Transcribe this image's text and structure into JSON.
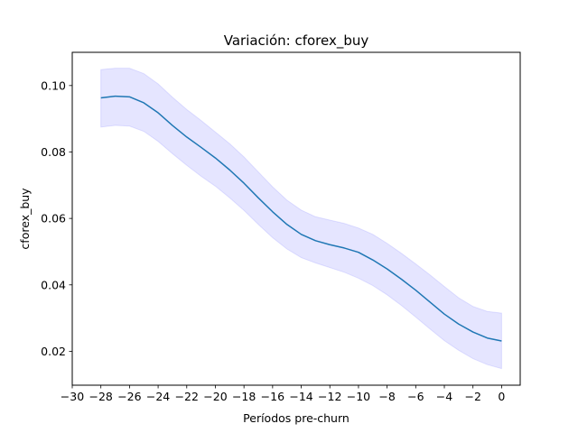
{
  "chart_data": {
    "type": "line",
    "title": "Variación: cforex_buy",
    "xlabel": "Períodos pre-churn",
    "ylabel": "cforex_buy",
    "xlim": [
      -30,
      1.3
    ],
    "ylim": [
      0.0098,
      0.11
    ],
    "x_ticks": [
      -30,
      -28,
      -26,
      -24,
      -22,
      -20,
      -18,
      -16,
      -14,
      -12,
      -10,
      -8,
      -6,
      -4,
      -2,
      0
    ],
    "x_tick_labels": [
      "−30",
      "−28",
      "−26",
      "−24",
      "−22",
      "−20",
      "−18",
      "−16",
      "−14",
      "−12",
      "−10",
      "−8",
      "−6",
      "−4",
      "−2",
      "0"
    ],
    "y_ticks": [
      0.02,
      0.04,
      0.06,
      0.08,
      0.1
    ],
    "y_tick_labels": [
      "0.02",
      "0.04",
      "0.06",
      "0.08",
      "0.10"
    ],
    "grid": false,
    "series": [
      {
        "color": "#1f77b4",
        "band_color": "#0000ff",
        "x": [
          -28,
          -27,
          -26,
          -25,
          -24,
          -23,
          -22,
          -21,
          -20,
          -19,
          -18,
          -17,
          -16,
          -15,
          -14,
          -13,
          -12,
          -11,
          -10,
          -9,
          -8,
          -7,
          -6,
          -5,
          -4,
          -3,
          -2,
          -1,
          0
        ],
        "y": [
          0.0963,
          0.0968,
          0.0966,
          0.0948,
          0.0918,
          0.088,
          0.0845,
          0.0814,
          0.0782,
          0.0746,
          0.0706,
          0.0662,
          0.062,
          0.0582,
          0.0552,
          0.0533,
          0.0521,
          0.0511,
          0.0498,
          0.0475,
          0.0448,
          0.0417,
          0.0384,
          0.0348,
          0.0312,
          0.0282,
          0.0258,
          0.024,
          0.0231
        ],
        "upper": [
          0.1048,
          0.1052,
          0.1052,
          0.1036,
          0.1005,
          0.0965,
          0.0928,
          0.0895,
          0.086,
          0.0825,
          0.0785,
          0.074,
          0.0695,
          0.0655,
          0.0625,
          0.0605,
          0.0595,
          0.0585,
          0.0571,
          0.0552,
          0.0525,
          0.0495,
          0.0463,
          0.043,
          0.0395,
          0.0361,
          0.0335,
          0.032,
          0.0315
        ],
        "lower": [
          0.0875,
          0.088,
          0.0878,
          0.0862,
          0.0832,
          0.0795,
          0.076,
          0.0727,
          0.0697,
          0.0662,
          0.0624,
          0.0582,
          0.0542,
          0.0508,
          0.0482,
          0.0466,
          0.0452,
          0.0438,
          0.042,
          0.0398,
          0.037,
          0.0338,
          0.0303,
          0.0267,
          0.0232,
          0.0203,
          0.0178,
          0.016,
          0.0148
        ]
      }
    ]
  }
}
